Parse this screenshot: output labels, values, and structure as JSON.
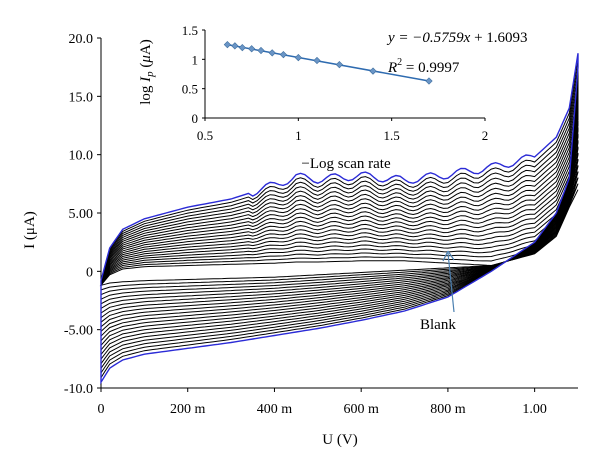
{
  "chart_data": [
    {
      "type": "line",
      "description_role": "main",
      "xlabel": "U (V)",
      "ylabel": "I (μA)",
      "xlim": [
        0,
        1.1
      ],
      "ylim": [
        -10,
        20
      ],
      "x_ticks": [
        0,
        0.2,
        0.4,
        0.6,
        0.8,
        1.0
      ],
      "x_tick_labels": [
        "0",
        "200 m",
        "400 m",
        "600 m",
        "800 m",
        "1.00"
      ],
      "y_ticks": [
        -10,
        -5,
        0,
        5,
        10,
        15,
        20
      ],
      "y_tick_labels": [
        "-10.0",
        "-5.00",
        "0",
        "5.00",
        "10.0",
        "15.0",
        "20.0"
      ],
      "annotation": "Blank",
      "series_count": 22,
      "x": [
        0,
        0.02,
        0.05,
        0.1,
        0.2,
        0.3,
        0.4,
        0.45,
        0.5,
        0.6,
        0.7,
        0.8,
        0.9,
        1.0,
        1.05,
        1.08,
        1.1
      ],
      "series": [
        {
          "name": "",
          "color": "#2b2bd6",
          "upper": [
            -0.8,
            2.0,
            3.6,
            4.5,
            5.5,
            6.2,
            7.4,
            8.1,
            7.9,
            8.2,
            7.8,
            8.3,
            8.9,
            9.8,
            11.5,
            14.0,
            18.7
          ],
          "lower": [
            -9.5,
            -8.3,
            -7.6,
            -7.1,
            -6.6,
            -6.1,
            -5.5,
            -5.2,
            -4.9,
            -4.2,
            -3.4,
            -2.2,
            0.0,
            2.5,
            5.0,
            8.0,
            17.5
          ]
        },
        {
          "name": "Blank",
          "color": "#000000",
          "upper": [
            -1.2,
            -0.3,
            0.2,
            0.4,
            0.5,
            0.6,
            0.7,
            0.8,
            0.8,
            0.9,
            0.9,
            0.7,
            0.5,
            1.5,
            3.0,
            5.5,
            7.0
          ],
          "lower": [
            -1.2,
            -1.0,
            -0.9,
            -0.8,
            -0.7,
            -0.6,
            -0.5,
            -0.4,
            -0.3,
            -0.1,
            0.1,
            0.3,
            0.5,
            1.5,
            3.0,
            5.5,
            7.0
          ]
        }
      ]
    },
    {
      "type": "scatter",
      "description_role": "inset",
      "xlabel": "−Log scan rate",
      "ylabel": "log I_p (μA)",
      "xlim": [
        0.5,
        2
      ],
      "ylim": [
        0,
        1.5
      ],
      "x_ticks": [
        0.5,
        1,
        1.5,
        2
      ],
      "x_tick_labels": [
        "0.5",
        "1",
        "1.5",
        "2"
      ],
      "y_ticks": [
        0,
        0.5,
        1,
        1.5
      ],
      "y_tick_labels": [
        "0",
        "0.5",
        "1",
        "1.5"
      ],
      "points": [
        {
          "x": 0.62,
          "y": 1.25
        },
        {
          "x": 0.66,
          "y": 1.23
        },
        {
          "x": 0.7,
          "y": 1.2
        },
        {
          "x": 0.75,
          "y": 1.18
        },
        {
          "x": 0.8,
          "y": 1.15
        },
        {
          "x": 0.86,
          "y": 1.11
        },
        {
          "x": 0.92,
          "y": 1.08
        },
        {
          "x": 1.0,
          "y": 1.03
        },
        {
          "x": 1.1,
          "y": 0.98
        },
        {
          "x": 1.22,
          "y": 0.91
        },
        {
          "x": 1.4,
          "y": 0.8
        },
        {
          "x": 1.7,
          "y": 0.63
        }
      ],
      "trendline": {
        "slope": -0.5759,
        "intercept": 1.6093
      },
      "equation": {
        "y_part": "y = −0.5759",
        "x_part": "x",
        "const_part": " + 1.6093"
      },
      "r_squared": {
        "label": "R",
        "sup": "2",
        "value": " = 0.9997"
      },
      "marker_color": "#6a95c6",
      "line_color": "#2e6bb0"
    }
  ]
}
